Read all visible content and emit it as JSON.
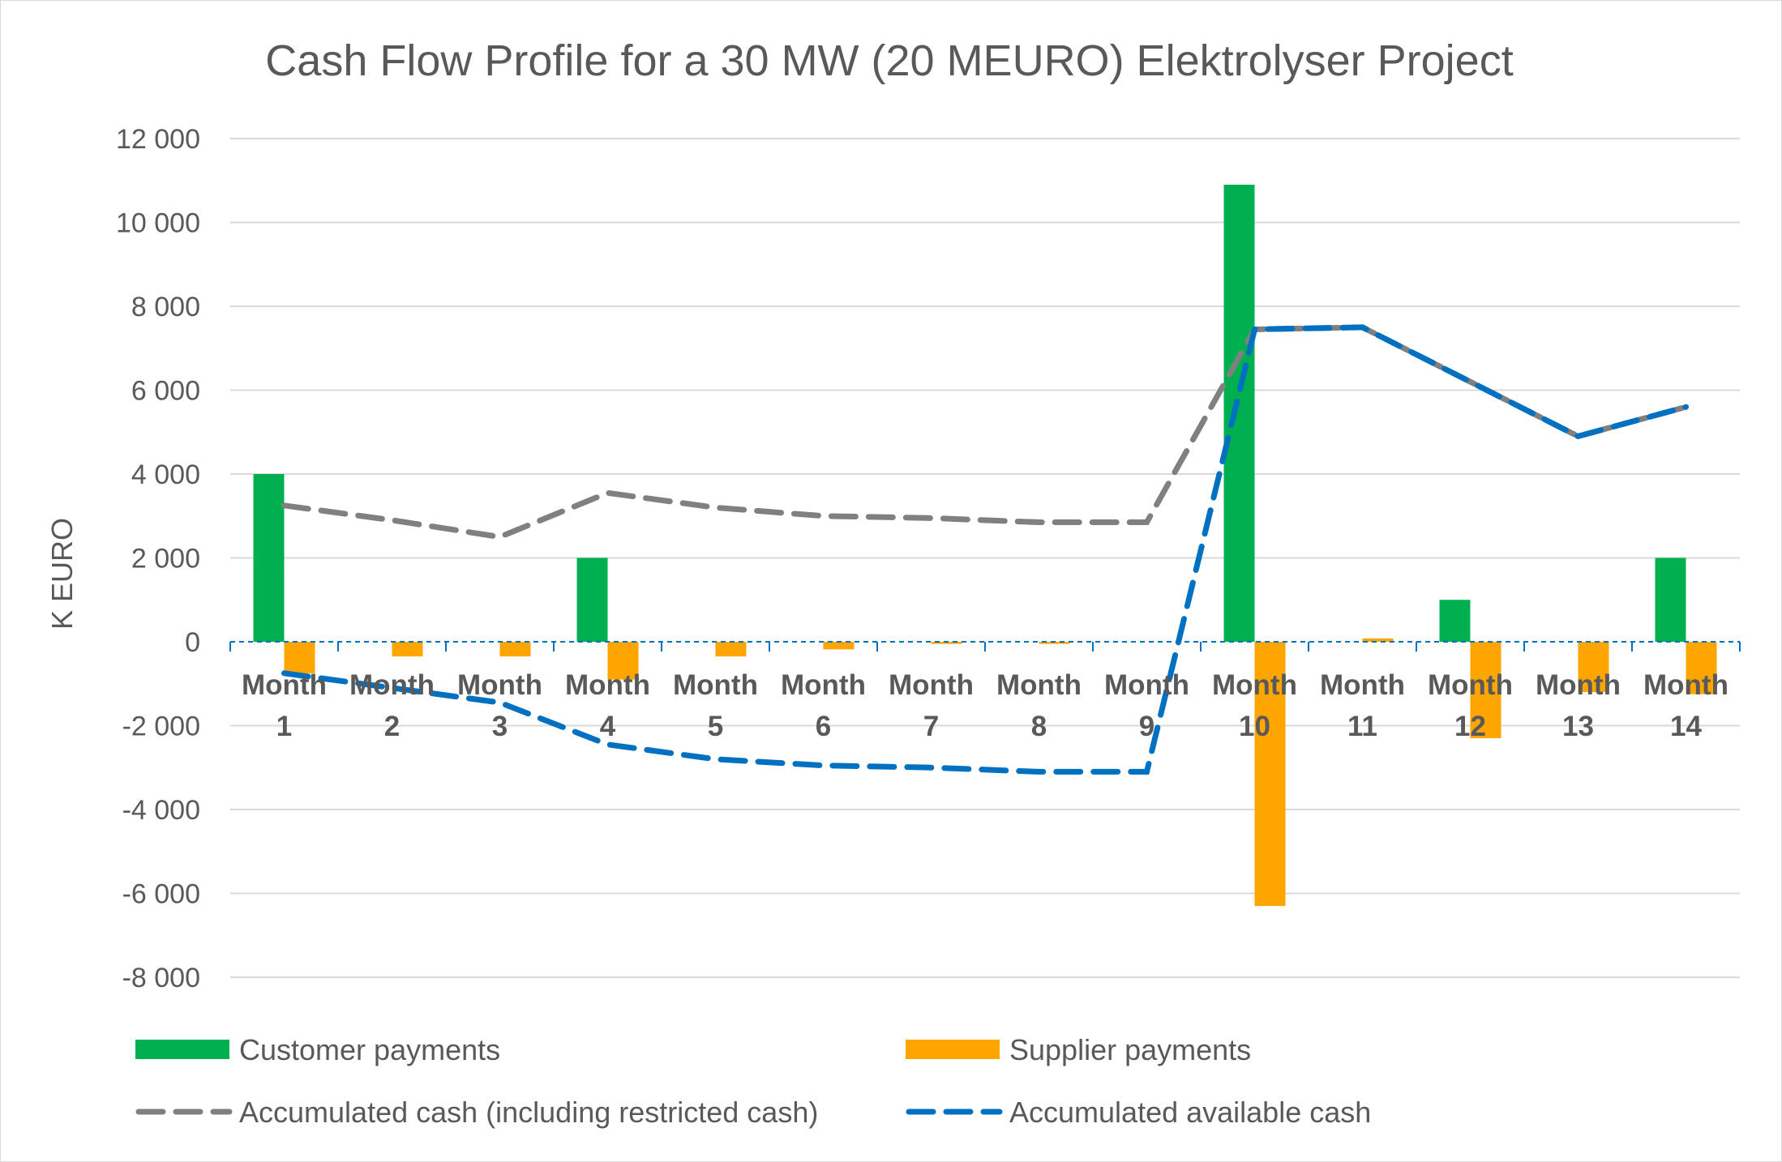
{
  "chart_data": {
    "type": "bar",
    "title": "Cash Flow Profile for a 30 MW (20 MEURO) Elektrolyser Project",
    "xlabel": "",
    "ylabel": "K EURO",
    "ylim": [
      -8000,
      12000
    ],
    "ytick_step": 2000,
    "ytick_labels": [
      "-8 000",
      "-6 000",
      "-4 000",
      "-2 000",
      "0",
      "2 000",
      "4 000",
      "6 000",
      "8 000",
      "10 000",
      "12 000"
    ],
    "grid": true,
    "legend_position": "bottom",
    "categories": [
      {
        "line1": "Month",
        "line2": "1"
      },
      {
        "line1": "Month",
        "line2": "2"
      },
      {
        "line1": "Month",
        "line2": "3"
      },
      {
        "line1": "Month",
        "line2": "4"
      },
      {
        "line1": "Month",
        "line2": "5"
      },
      {
        "line1": "Month",
        "line2": "6"
      },
      {
        "line1": "Month",
        "line2": "7"
      },
      {
        "line1": "Month",
        "line2": "8"
      },
      {
        "line1": "Month",
        "line2": "9"
      },
      {
        "line1": "Month",
        "line2": "10"
      },
      {
        "line1": "Month",
        "line2": "11"
      },
      {
        "line1": "Month",
        "line2": "12"
      },
      {
        "line1": "Month",
        "line2": "13"
      },
      {
        "line1": "Month",
        "line2": "14"
      }
    ],
    "series": [
      {
        "name": "Customer payments",
        "kind": "bar",
        "color": "#00b050",
        "values": [
          4000,
          0,
          0,
          2000,
          0,
          0,
          0,
          0,
          0,
          10900,
          0,
          1000,
          0,
          2000
        ]
      },
      {
        "name": "Supplier payments",
        "kind": "bar",
        "color": "#ffa500",
        "values": [
          -750,
          -350,
          -350,
          -900,
          -350,
          -180,
          -50,
          -50,
          0,
          -6300,
          80,
          -2300,
          -1200,
          -1250
        ]
      },
      {
        "name": "Accumulated cash (including restricted cash)",
        "kind": "line",
        "color": "#808080",
        "dash": "dashed",
        "values": [
          3250,
          2900,
          2500,
          3550,
          3200,
          3000,
          2950,
          2850,
          2850,
          7450,
          7500,
          6200,
          4900,
          5600
        ]
      },
      {
        "name": "Accumulated available cash",
        "kind": "line",
        "color": "#0070c0",
        "dash": "dashed",
        "values": [
          -750,
          -1100,
          -1450,
          -2450,
          -2800,
          -2950,
          -3000,
          -3100,
          -3100,
          7450,
          7500,
          6200,
          4900,
          5600
        ]
      }
    ]
  }
}
